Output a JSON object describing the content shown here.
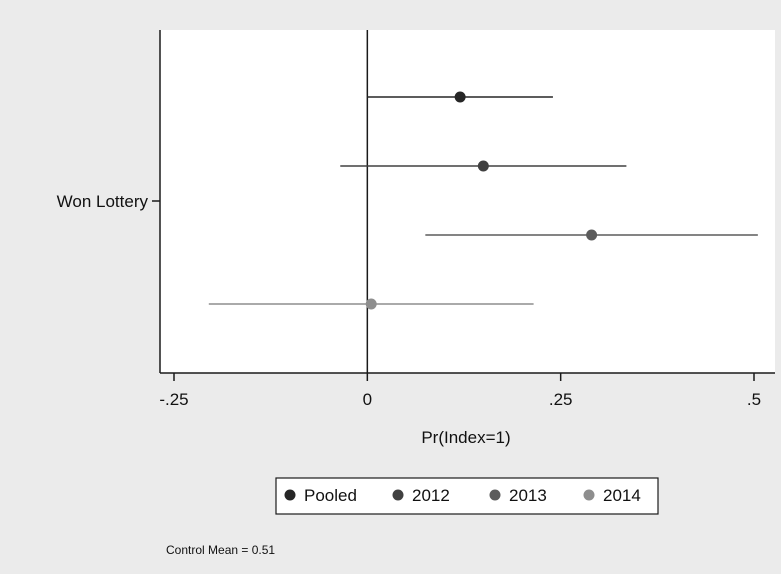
{
  "chart_data": {
    "type": "scatter",
    "subtype": "coefficient plot with confidence intervals",
    "title": "",
    "xlabel": "Pr(Index=1)",
    "ylabel": "",
    "y_category": "Won Lottery",
    "xlim": [
      -0.25,
      0.5
    ],
    "x_ticks": [
      -0.25,
      0,
      0.25,
      0.5
    ],
    "x_tick_labels": [
      "-.25",
      "0",
      ".25",
      ".5"
    ],
    "reference_line_x": 0,
    "grid": false,
    "legend_position": "bottom",
    "series": [
      {
        "name": "Pooled",
        "estimate": 0.12,
        "ci": [
          0.0,
          0.24
        ],
        "color": "#262626"
      },
      {
        "name": "2012",
        "estimate": 0.15,
        "ci": [
          -0.035,
          0.335
        ],
        "color": "#404040"
      },
      {
        "name": "2013",
        "estimate": 0.29,
        "ci": [
          0.075,
          0.505
        ],
        "color": "#5c5c5c"
      },
      {
        "name": "2014",
        "estimate": 0.005,
        "ci": [
          -0.205,
          0.215
        ],
        "color": "#8e8e8e"
      }
    ],
    "note": "Control Mean = 0.51"
  },
  "colors": {
    "outer_background": "#ebebeb",
    "plot_background": "#ffffff",
    "axis": "#1a1a1a"
  }
}
